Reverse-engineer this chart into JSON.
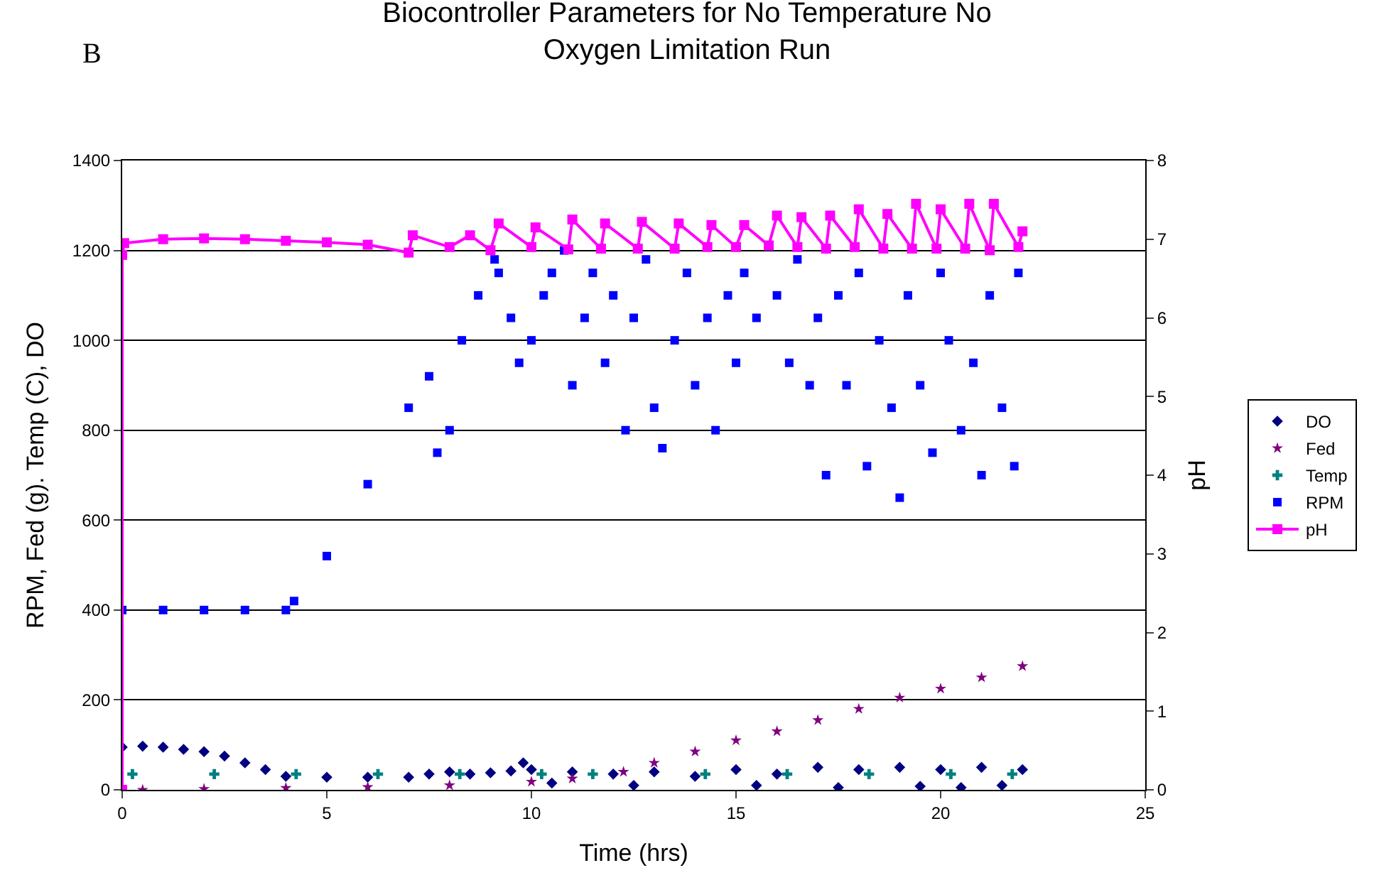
{
  "chart_data": {
    "type": "scatter",
    "title": "Biocontroller Parameters for No Temperature No\nOxygen Limitation Run",
    "annotations": [
      "B"
    ],
    "xlabel": "Time (hrs)",
    "ylabel": "RPM, Fed (g). Temp (C), DO",
    "y2label": "pH",
    "xlim": [
      0,
      25
    ],
    "xticks": [
      0,
      5,
      10,
      15,
      20,
      25
    ],
    "ylim": [
      0,
      1400
    ],
    "yticks": [
      0,
      200,
      400,
      600,
      800,
      1000,
      1200,
      1400
    ],
    "y2lim": [
      0,
      8
    ],
    "y2ticks": [
      0,
      1,
      2,
      3,
      4,
      5,
      6,
      7,
      8
    ],
    "grid": "y",
    "legend": "right",
    "series": [
      {
        "name": "DO",
        "color": "#000080",
        "marker": "diamond",
        "x": [
          0,
          0.5,
          1,
          1.5,
          2,
          2.5,
          3,
          3.5,
          4,
          5,
          6,
          7,
          7.5,
          8,
          8.5,
          9,
          9.5,
          9.8,
          10,
          10.5,
          11,
          12,
          12.5,
          13,
          14,
          15,
          15.5,
          16,
          17,
          17.5,
          18,
          19,
          19.5,
          20,
          20.5,
          21,
          21.5,
          22
        ],
        "values": [
          95,
          97,
          95,
          90,
          85,
          75,
          60,
          45,
          30,
          28,
          28,
          28,
          35,
          40,
          35,
          38,
          42,
          60,
          45,
          15,
          40,
          35,
          10,
          40,
          30,
          45,
          10,
          35,
          50,
          5,
          45,
          50,
          8,
          45,
          5,
          50,
          10,
          45
        ]
      },
      {
        "name": "Fed",
        "color": "#800080",
        "marker": "star",
        "x": [
          0.5,
          2,
          4,
          6,
          8,
          10,
          11,
          12.25,
          13,
          14,
          15,
          16,
          17,
          18,
          19,
          20,
          21,
          22
        ],
        "values": [
          0,
          2,
          4,
          6,
          10,
          18,
          25,
          40,
          60,
          85,
          110,
          130,
          155,
          180,
          205,
          225,
          250,
          275
        ]
      },
      {
        "name": "Temp",
        "color": "#008080",
        "marker": "cross",
        "x": [
          0.25,
          2.25,
          4.25,
          6.25,
          8.25,
          10.25,
          11.5,
          14.25,
          16.25,
          18.25,
          20.25,
          21.75
        ],
        "values": [
          35,
          35,
          35,
          35,
          35,
          35,
          35,
          35,
          35,
          35,
          35,
          35
        ]
      },
      {
        "name": "RPM",
        "color": "#0000ff",
        "marker": "square",
        "x": [
          0,
          1,
          2,
          3,
          4,
          4.2,
          5,
          6,
          7,
          7.5,
          7.7,
          8,
          8.3,
          8.7,
          9.1,
          9.2,
          9.5,
          9.7,
          10,
          10.3,
          10.5,
          10.8,
          11,
          11.3,
          11.5,
          11.8,
          12,
          12.3,
          12.5,
          12.8,
          13,
          13.2,
          13.5,
          13.8,
          14,
          14.3,
          14.5,
          14.8,
          15,
          15.2,
          15.5,
          16,
          16.3,
          16.5,
          16.8,
          17,
          17.2,
          17.5,
          17.7,
          18,
          18.2,
          18.5,
          18.8,
          19,
          19.2,
          19.5,
          19.8,
          20,
          20.2,
          20.5,
          20.8,
          21,
          21.2,
          21.5,
          21.8,
          21.9
        ],
        "values": [
          400,
          400,
          400,
          400,
          400,
          420,
          520,
          680,
          850,
          920,
          750,
          800,
          1000,
          1100,
          1180,
          1150,
          1050,
          950,
          1000,
          1100,
          1150,
          1200,
          900,
          1050,
          1150,
          950,
          1100,
          800,
          1050,
          1180,
          850,
          760,
          1000,
          1150,
          900,
          1050,
          800,
          1100,
          950,
          1150,
          1050,
          1100,
          950,
          1180,
          900,
          1050,
          700,
          1100,
          900,
          1150,
          720,
          1000,
          850,
          650,
          1100,
          900,
          750,
          1150,
          1000,
          800,
          950,
          700,
          1100,
          850,
          720,
          1150
        ]
      },
      {
        "name": "pH",
        "color": "#ff00ff",
        "type": "line",
        "axis": "y2",
        "marker": "square",
        "x": [
          0,
          0,
          0.05,
          1,
          2,
          3,
          4,
          5,
          6,
          7,
          7.1,
          8,
          8.5,
          9,
          9.2,
          10,
          10.1,
          10.9,
          11,
          11.7,
          11.8,
          12.6,
          12.7,
          13.5,
          13.6,
          14.3,
          14.4,
          15,
          15.2,
          15.8,
          16,
          16.5,
          16.6,
          17.2,
          17.3,
          17.9,
          18,
          18.6,
          18.7,
          19.3,
          19.4,
          19.9,
          20,
          20.6,
          20.7,
          21.2,
          21.3,
          21.9,
          22
        ],
        "values": [
          0,
          6.8,
          6.95,
          7.0,
          7.01,
          7.0,
          6.98,
          6.96,
          6.93,
          6.83,
          7.05,
          6.9,
          7.05,
          6.86,
          7.2,
          6.9,
          7.15,
          6.87,
          7.25,
          6.88,
          7.2,
          6.88,
          7.22,
          6.88,
          7.2,
          6.9,
          7.18,
          6.9,
          7.18,
          6.92,
          7.3,
          6.9,
          7.28,
          6.88,
          7.3,
          6.9,
          7.38,
          6.88,
          7.32,
          6.88,
          7.45,
          6.88,
          7.38,
          6.88,
          7.45,
          6.86,
          7.45,
          6.9,
          7.1
        ]
      }
    ]
  }
}
